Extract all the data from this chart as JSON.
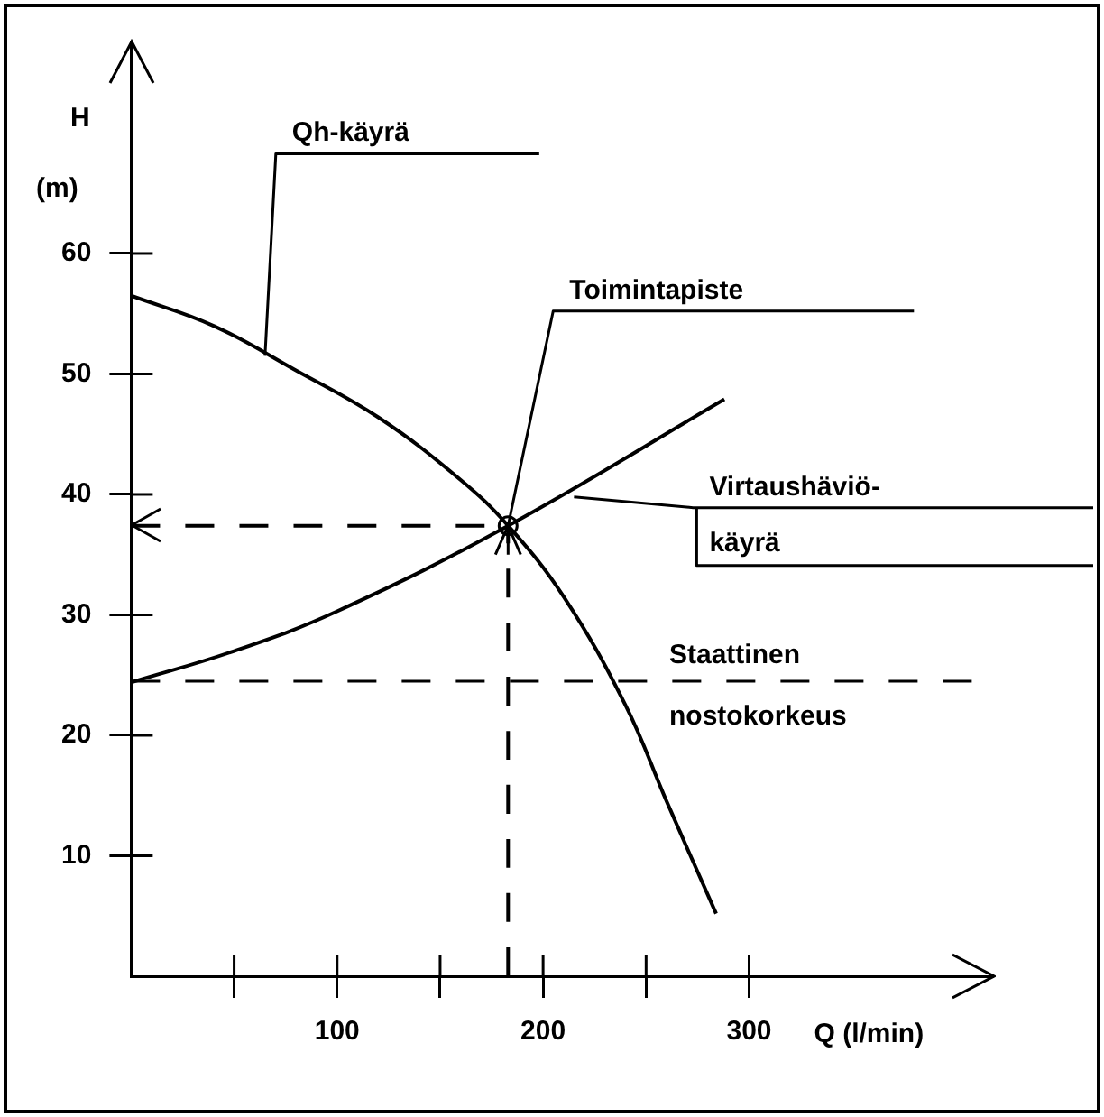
{
  "chart_data": {
    "type": "line",
    "xlabel": "Q (l/min)",
    "ylabel": "H\n(m)",
    "xlim": [
      0,
      418
    ],
    "ylim": [
      0,
      77.6
    ],
    "xticks": [
      {
        "value": 50,
        "label": null
      },
      100,
      {
        "value": 150,
        "label": null
      },
      200,
      {
        "value": 250,
        "label": null
      },
      300
    ],
    "yticks": [
      10,
      20,
      30,
      40,
      50,
      60
    ],
    "grid": false,
    "legend": false,
    "marker": "none",
    "series": [
      {
        "color": "#000000",
        "x": [
          0,
          40,
          80,
          120,
          160,
          183,
          210,
          240,
          260,
          284
        ],
        "values": [
          56.5,
          54,
          50.3,
          46.4,
          41.2,
          37.4,
          31.5,
          22.5,
          14.5,
          5.2
        ]
      },
      {
        "color": "#000000",
        "x": [
          0,
          50,
          100,
          183,
          288
        ],
        "values": [
          24.4,
          27,
          30.3,
          37.4,
          47.9
        ]
      },
      {
        "color": "#000000",
        "line_style": "dashed",
        "x": [
          0,
          183
        ],
        "values": [
          37.4,
          37.4
        ]
      },
      {
        "color": "#000000",
        "line_style": "dashed",
        "x": [
          183,
          183
        ],
        "values": [
          0,
          37.4
        ]
      }
    ],
    "ref_lines": [
      {
        "axis": "y",
        "value": 24.5,
        "label": "Staattinen nostokorkeus",
        "line_style": "dashed",
        "color": "#000000"
      }
    ],
    "annotations": [
      {
        "text": "Qh-käyrä",
        "x": 65,
        "y": 51.5
      },
      {
        "text": "Toimintapiste",
        "x": 183,
        "y": 37.4
      },
      {
        "text": "Virtaushäviö- käyrä",
        "x": 215,
        "y": 39.8
      }
    ]
  }
}
